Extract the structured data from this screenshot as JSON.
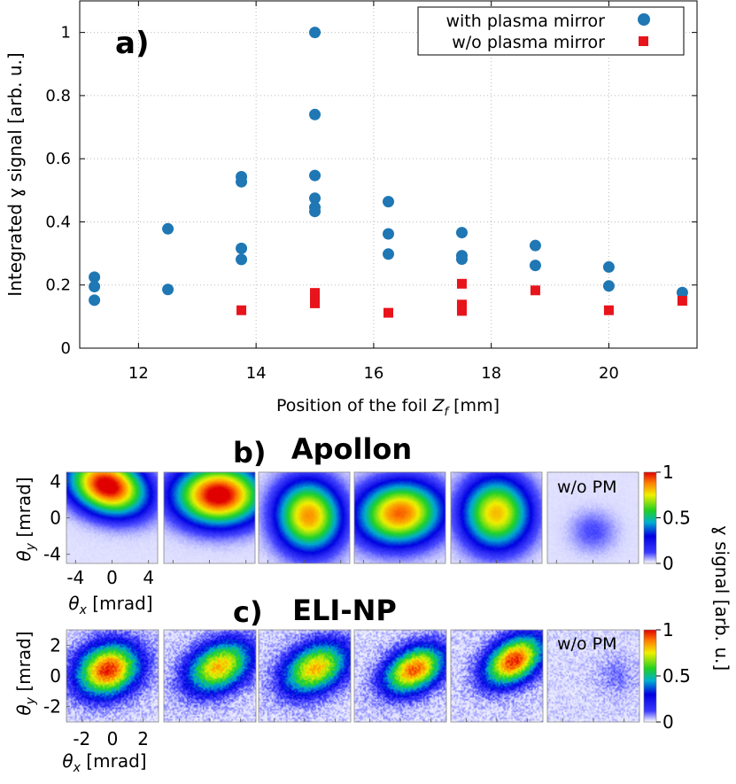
{
  "chart_data": [
    {
      "type": "scatter",
      "panel_label": "a)",
      "title": "",
      "xlabel_prefix": "Position of the foil ",
      "xlabel_var": "Z",
      "xlabel_sub": "f",
      "xlabel_unit": " [mm]",
      "ylabel": "Integrated ɣ signal [arb. u.]",
      "xlim": [
        11.0,
        21.5
      ],
      "ylim": [
        0,
        1.1
      ],
      "xticks": [
        12,
        14,
        16,
        18,
        20
      ],
      "xtick_labels": [
        "12",
        "14",
        "16",
        "18",
        "20"
      ],
      "yticks": [
        0,
        0.2,
        0.4,
        0.6,
        0.8,
        1
      ],
      "ytick_labels": [
        "0",
        "0.2",
        "0.4",
        "0.6",
        "0.8",
        "1"
      ],
      "grid": true,
      "legend_position": "top-right",
      "series": [
        {
          "name": "with plasma mirror",
          "marker": "circle",
          "color": "#1f77b4",
          "points": [
            [
              11.25,
              0.225
            ],
            [
              11.25,
              0.195
            ],
            [
              11.25,
              0.152
            ],
            [
              12.5,
              0.378
            ],
            [
              12.5,
              0.186
            ],
            [
              13.75,
              0.543
            ],
            [
              13.75,
              0.527
            ],
            [
              13.75,
              0.316
            ],
            [
              13.75,
              0.281
            ],
            [
              15.0,
              1.0
            ],
            [
              15.0,
              0.74
            ],
            [
              15.0,
              0.547
            ],
            [
              15.0,
              0.475
            ],
            [
              15.0,
              0.446
            ],
            [
              15.0,
              0.433
            ],
            [
              16.25,
              0.464
            ],
            [
              16.25,
              0.362
            ],
            [
              16.25,
              0.298
            ],
            [
              17.5,
              0.366
            ],
            [
              17.5,
              0.293
            ],
            [
              17.5,
              0.282
            ],
            [
              18.75,
              0.325
            ],
            [
              18.75,
              0.262
            ],
            [
              20.0,
              0.257
            ],
            [
              20.0,
              0.197
            ],
            [
              21.25,
              0.176
            ]
          ]
        },
        {
          "name": "w/o plasma mirror",
          "marker": "square",
          "color": "#e8141c",
          "points": [
            [
              13.75,
              0.12
            ],
            [
              15.0,
              0.175
            ],
            [
              15.0,
              0.158
            ],
            [
              15.0,
              0.142
            ],
            [
              16.25,
              0.112
            ],
            [
              17.5,
              0.204
            ],
            [
              17.5,
              0.138
            ],
            [
              17.5,
              0.128
            ],
            [
              17.5,
              0.118
            ],
            [
              18.75,
              0.183
            ],
            [
              20.0,
              0.12
            ],
            [
              21.25,
              0.15
            ]
          ]
        }
      ]
    },
    {
      "type": "heatmap",
      "panel_label": "b)",
      "title": "Apollon",
      "xlabel_var": "θ",
      "xlabel_sub": "x",
      "xlabel_unit": " [mrad]",
      "ylabel_var": "θ",
      "ylabel_sub": "y",
      "ylabel_unit": " [mrad]",
      "xlim": [
        -5,
        5
      ],
      "ylim": [
        -5,
        5
      ],
      "xticks": [
        -4,
        0,
        4
      ],
      "xtick_labels": [
        "-4",
        "0",
        "4"
      ],
      "yticks": [
        4,
        0,
        -4
      ],
      "ytick_labels": [
        "4",
        "0",
        "-4"
      ],
      "no_pm_label": "w/o PM",
      "maps": [
        {
          "cx": -0.5,
          "cy": 3.5,
          "sx": 2.9,
          "sy": 2.0,
          "amp": 1.0,
          "rot": -0.35,
          "noise": 0.02
        },
        {
          "cx": 1.0,
          "cy": 2.5,
          "sx": 3.2,
          "sy": 2.2,
          "amp": 1.0,
          "rot": 0.0,
          "noise": 0.02
        },
        {
          "cx": 0.5,
          "cy": 0.2,
          "sx": 2.4,
          "sy": 2.6,
          "amp": 0.8,
          "rot": 0.2,
          "noise": 0.02
        },
        {
          "cx": 0.0,
          "cy": 0.5,
          "sx": 3.1,
          "sy": 2.3,
          "amp": 0.85,
          "rot": 0.1,
          "noise": 0.02
        },
        {
          "cx": 0.0,
          "cy": 0.5,
          "sx": 2.5,
          "sy": 2.6,
          "amp": 0.75,
          "rot": 0.0,
          "noise": 0.02
        },
        {
          "cx": 0.0,
          "cy": -1.5,
          "sx": 1.8,
          "sy": 1.6,
          "amp": 0.12,
          "rot": 0.0,
          "noise": 0.02
        }
      ]
    },
    {
      "type": "heatmap",
      "panel_label": "c)",
      "title": "ELI-NP",
      "xlabel_var": "θ",
      "xlabel_sub": "x",
      "xlabel_unit": " [mrad]",
      "ylabel_var": "θ",
      "ylabel_sub": "y",
      "ylabel_unit": " [mrad]",
      "xlim": [
        -3,
        3
      ],
      "ylim": [
        -3,
        3
      ],
      "xticks": [
        -2,
        0,
        2
      ],
      "xtick_labels": [
        "-2",
        "0",
        "2"
      ],
      "yticks": [
        2,
        0,
        -2
      ],
      "ytick_labels": [
        "2",
        "0",
        "-2"
      ],
      "no_pm_label": "w/o PM",
      "maps": [
        {
          "cx": -0.3,
          "cy": 0.4,
          "sx": 1.4,
          "sy": 1.1,
          "amp": 0.9,
          "rot": 0.4,
          "noise": 0.12
        },
        {
          "cx": 0.6,
          "cy": 0.6,
          "sx": 1.5,
          "sy": 1.0,
          "amp": 0.75,
          "rot": 0.5,
          "noise": 0.12
        },
        {
          "cx": 0.7,
          "cy": 0.5,
          "sx": 1.5,
          "sy": 1.0,
          "amp": 0.75,
          "rot": 0.5,
          "noise": 0.12
        },
        {
          "cx": 0.9,
          "cy": 0.4,
          "sx": 1.4,
          "sy": 0.9,
          "amp": 0.85,
          "rot": 0.5,
          "noise": 0.12
        },
        {
          "cx": 1.1,
          "cy": 1.0,
          "sx": 1.4,
          "sy": 0.9,
          "amp": 0.9,
          "rot": 0.6,
          "noise": 0.12
        },
        {
          "cx": 1.5,
          "cy": 0.0,
          "sx": 0.9,
          "sy": 0.9,
          "amp": 0.08,
          "rot": 0.0,
          "noise": 0.1
        }
      ]
    }
  ],
  "colorbar": {
    "label": "ɣ signal [arb. u.]",
    "ticks": [
      1,
      0.5,
      0
    ],
    "tick_labels": [
      "1",
      "0.5",
      "0"
    ]
  }
}
